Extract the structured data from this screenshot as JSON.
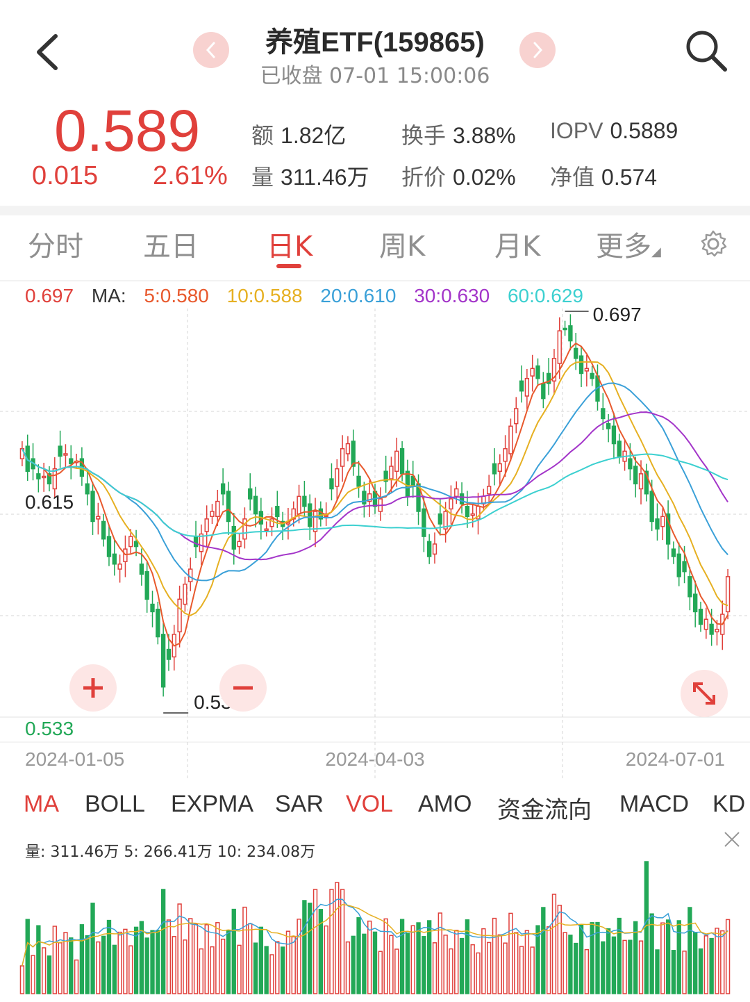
{
  "header": {
    "title": "养殖ETF(159865)",
    "subtitle": "已收盘 07-01 15:00:06",
    "prev_icon": "chevron-left-icon",
    "next_icon": "chevron-right-icon"
  },
  "quote": {
    "price": "0.589",
    "change": "0.015",
    "change_pct": "2.61%",
    "stats": [
      {
        "k": "额",
        "v": "1.82亿"
      },
      {
        "k": "换手",
        "v": "3.88%"
      },
      {
        "k": "IOPV",
        "v": "0.5889"
      },
      {
        "k": "量",
        "v": "311.46万"
      },
      {
        "k": "折价",
        "v": "0.02%"
      },
      {
        "k": "净值",
        "v": "0.574"
      }
    ]
  },
  "tabs": [
    "分时",
    "五日",
    "日K",
    "周K",
    "月K",
    "更多"
  ],
  "active_tab": "日K",
  "ma_legend": {
    "price": "0.697",
    "ma_label": "MA:",
    "ma5": "5:0.580",
    "ma10": "10:0.588",
    "ma20": "20:0.610",
    "ma30": "30:0.630",
    "ma60": "60:0.629"
  },
  "colors": {
    "up": "#e0403b",
    "down": "#22a857",
    "ma5": "#e8592d",
    "ma10": "#e6b022",
    "ma20": "#3aa0d8",
    "ma30": "#a335c9",
    "ma60": "#3cd0d0"
  },
  "chart_data": {
    "type": "candlestick",
    "y_high_label": "0.697",
    "y_low_label": "0.533",
    "y_mid_label": "0.615",
    "max_marker": "0.697",
    "min_marker": "0.533",
    "ylim": [
      0.533,
      0.697
    ],
    "x_labels": [
      "2024-01-05",
      "2024-04-03",
      "2024-07-01"
    ],
    "close": [
      0.64,
      0.631,
      0.632,
      0.628,
      0.629,
      0.626,
      0.632,
      0.637,
      0.638,
      0.634,
      0.635,
      0.629,
      0.622,
      0.611,
      0.613,
      0.604,
      0.597,
      0.594,
      0.594,
      0.6,
      0.605,
      0.601,
      0.59,
      0.58,
      0.575,
      0.565,
      0.545,
      0.556,
      0.566,
      0.58,
      0.586,
      0.592,
      0.601,
      0.606,
      0.612,
      0.615,
      0.619,
      0.622,
      0.611,
      0.6,
      0.603,
      0.612,
      0.62,
      0.614,
      0.61,
      0.608,
      0.612,
      0.613,
      0.609,
      0.611,
      0.616,
      0.621,
      0.617,
      0.609,
      0.615,
      0.612,
      0.614,
      0.624,
      0.632,
      0.64,
      0.642,
      0.633,
      0.625,
      0.618,
      0.622,
      0.617,
      0.62,
      0.627,
      0.633,
      0.639,
      0.63,
      0.621,
      0.625,
      0.615,
      0.605,
      0.597,
      0.602,
      0.61,
      0.615,
      0.62,
      0.624,
      0.618,
      0.613,
      0.614,
      0.617,
      0.621,
      0.625,
      0.63,
      0.634,
      0.64,
      0.649,
      0.656,
      0.663,
      0.668,
      0.672,
      0.668,
      0.66,
      0.666,
      0.676,
      0.687,
      0.688,
      0.683,
      0.676,
      0.67,
      0.672,
      0.668,
      0.659,
      0.652,
      0.648,
      0.642,
      0.637,
      0.639,
      0.632,
      0.626,
      0.63,
      0.622,
      0.611,
      0.608,
      0.613,
      0.602,
      0.597,
      0.589,
      0.591,
      0.581,
      0.575,
      0.57,
      0.572,
      0.566,
      0.568,
      0.574,
      0.589
    ]
  },
  "tools": {
    "zoom_in": "plus-icon",
    "zoom_out": "minus-icon",
    "fullscreen": "expand-icon"
  },
  "indicators": [
    "MA",
    "BOLL",
    "EXPMA",
    "SAR",
    "VOL",
    "AMO",
    "资金流向",
    "MACD",
    "KD"
  ],
  "active_indicators": [
    "MA",
    "VOL"
  ],
  "volume": {
    "legend": "量: 311.46万 5: 266.41万 10: 234.08万",
    "close_icon": "close-icon"
  }
}
